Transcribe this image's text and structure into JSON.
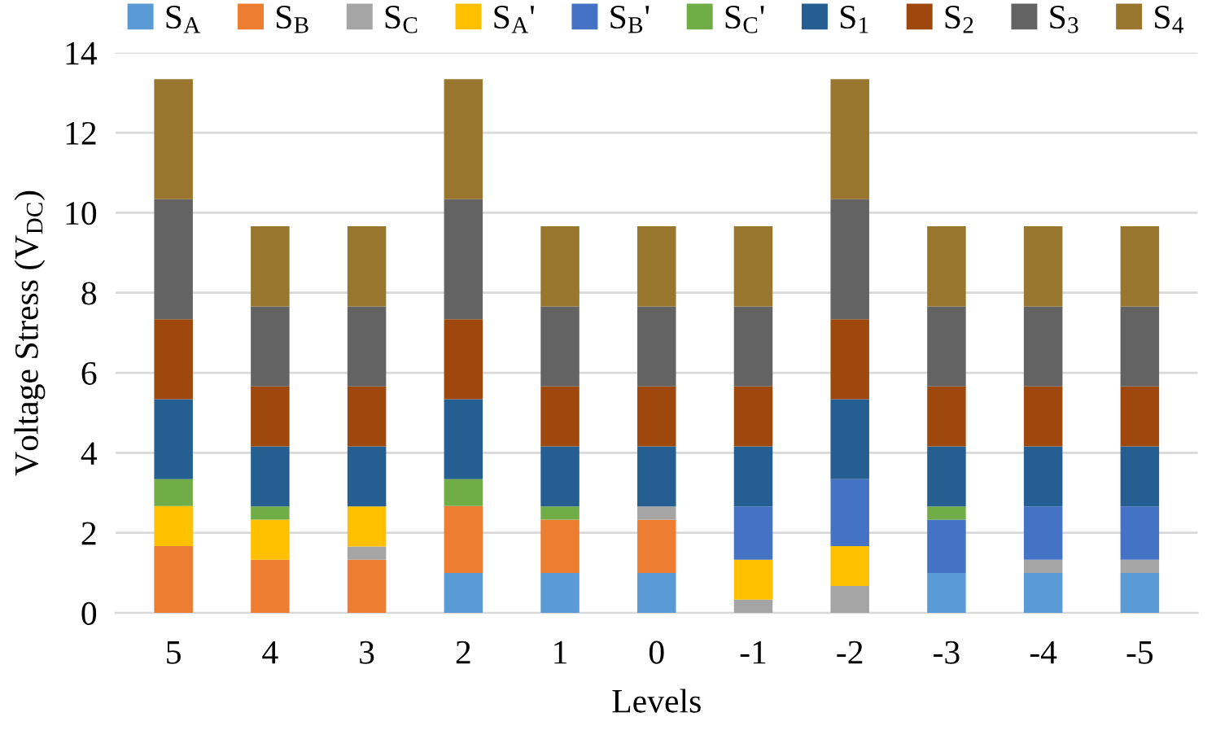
{
  "chart_data": {
    "type": "bar",
    "stacked": true,
    "xlabel": "Levels",
    "ylabel": "Voltage Stress (V$_{DC}$)",
    "categories": [
      "5",
      "4",
      "3",
      "2",
      "1",
      "0",
      "-1",
      "-2",
      "-3",
      "-4",
      "-5"
    ],
    "ylim": [
      0,
      14
    ],
    "yticks": [
      0,
      2,
      4,
      6,
      8,
      10,
      12,
      14
    ],
    "grid": "y",
    "legend": "top",
    "series": [
      {
        "name": "S$_{A}$",
        "color": "#5b9bd5",
        "values": [
          null,
          null,
          null,
          1.0,
          1.0,
          1.0,
          null,
          null,
          1.0,
          1.0,
          1.0
        ]
      },
      {
        "name": "S$_{B}$",
        "color": "#ed7d31",
        "values": [
          1.67,
          1.33,
          1.33,
          1.67,
          1.33,
          1.33,
          null,
          null,
          null,
          null,
          null
        ]
      },
      {
        "name": "S$_{C}$",
        "color": "#a5a5a5",
        "values": [
          null,
          null,
          0.33,
          null,
          null,
          0.33,
          0.33,
          0.67,
          null,
          0.33,
          0.33
        ]
      },
      {
        "name": "S$_{A}$'",
        "color": "#ffc000",
        "values": [
          1.0,
          1.0,
          1.0,
          null,
          null,
          null,
          1.0,
          1.0,
          null,
          null,
          null
        ]
      },
      {
        "name": "S$_{B}$'",
        "color": "#4472c4",
        "values": [
          null,
          null,
          null,
          null,
          null,
          null,
          1.33,
          1.67,
          1.33,
          1.33,
          1.33
        ]
      },
      {
        "name": "S$_{C}$'",
        "color": "#70ad47",
        "values": [
          0.67,
          0.33,
          null,
          0.67,
          0.33,
          null,
          null,
          null,
          0.33,
          null,
          null
        ]
      },
      {
        "name": "S$_{1}$",
        "color": "#255e91",
        "values": [
          2.0,
          1.5,
          1.5,
          2.0,
          1.5,
          1.5,
          1.5,
          2.0,
          1.5,
          1.5,
          1.5
        ]
      },
      {
        "name": "S$_{2}$",
        "color": "#9e480e",
        "values": [
          2.0,
          1.5,
          1.5,
          2.0,
          1.5,
          1.5,
          1.5,
          2.0,
          1.5,
          1.5,
          1.5
        ]
      },
      {
        "name": "S$_{3}$",
        "color": "#636363",
        "values": [
          3.0,
          2.0,
          2.0,
          3.0,
          2.0,
          2.0,
          2.0,
          3.0,
          2.0,
          2.0,
          2.0
        ]
      },
      {
        "name": "S$_{4}$",
        "color": "#98762e",
        "values": [
          3.0,
          2.0,
          2.0,
          3.0,
          2.0,
          2.0,
          2.0,
          3.0,
          2.0,
          2.0,
          2.0
        ]
      }
    ]
  }
}
